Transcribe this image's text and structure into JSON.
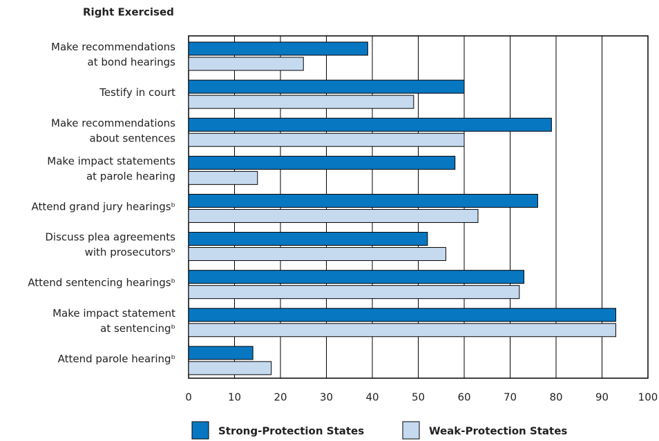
{
  "chart_data": {
    "type": "bar",
    "orientation": "horizontal",
    "title": "Right Exercised",
    "categories": [
      [
        "Make recommendations",
        "at bond hearings"
      ],
      [
        "Testify in court"
      ],
      [
        "Make recommendations",
        "about sentences"
      ],
      [
        "Make impact statements",
        "at parole hearing"
      ],
      [
        "Attend grand jury hearingsᵇ"
      ],
      [
        "Discuss plea agreements",
        "with prosecutorsᵇ"
      ],
      [
        "Attend sentencing hearingsᵇ"
      ],
      [
        "Make impact statement",
        "at sentencingᵇ"
      ],
      [
        "Attend parole hearingᵇ"
      ]
    ],
    "series": [
      {
        "name": "Strong-Protection States",
        "color": "#0877c2",
        "values": [
          39,
          60,
          79,
          58,
          76,
          52,
          73,
          93,
          14
        ]
      },
      {
        "name": "Weak-Protection States",
        "color": "#c6daef",
        "values": [
          25,
          49,
          60,
          15,
          63,
          56,
          72,
          93,
          18
        ]
      }
    ],
    "xlim": [
      0,
      100
    ],
    "xticks": [
      0,
      10,
      20,
      30,
      40,
      50,
      60,
      70,
      80,
      90,
      100
    ],
    "grid": true,
    "legend": "bottom"
  }
}
